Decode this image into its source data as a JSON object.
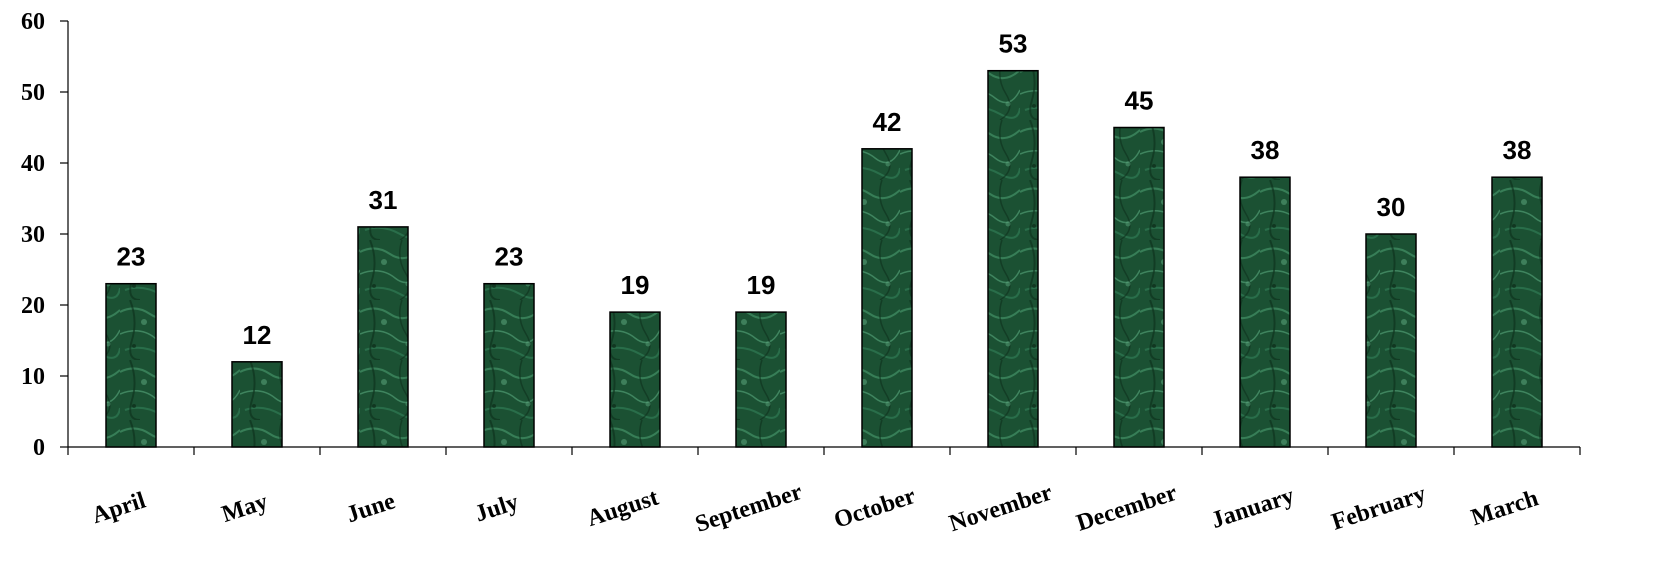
{
  "chart_data": {
    "type": "bar",
    "categories": [
      "April",
      "May",
      "June",
      "July",
      "August",
      "September",
      "October",
      "November",
      "December",
      "January",
      "February",
      "March"
    ],
    "values": [
      23,
      12,
      31,
      23,
      19,
      19,
      42,
      53,
      45,
      38,
      30,
      38
    ],
    "title": "",
    "xlabel": "",
    "ylabel": "",
    "ylim": [
      0,
      60
    ],
    "yticks": [
      "0",
      "10",
      "20",
      "30",
      "40",
      "50",
      "60"
    ],
    "grid": false,
    "legend": "none",
    "data_labels": true,
    "colors": {
      "bar_fill_dark": "#0f3a22",
      "bar_fill_light": "#2f7a52",
      "bar_stroke": "#000000",
      "axis": "#000000"
    }
  }
}
